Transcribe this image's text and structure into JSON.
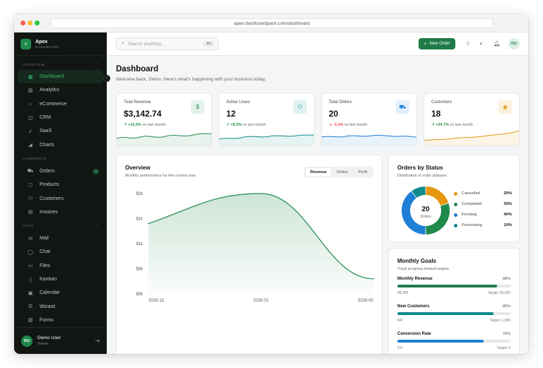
{
  "browser": {
    "url": "apex.dashboardpack.com/dashboard"
  },
  "brand": {
    "name": "Apex",
    "subtitle": "DASHBOARD"
  },
  "sidebar": {
    "sections": [
      {
        "title": "OVERVIEW",
        "items": [
          {
            "label": "Dashboard",
            "icon": "dashboard-icon",
            "active": true
          },
          {
            "label": "Analytics",
            "icon": "analytics-icon"
          },
          {
            "label": "eCommerce",
            "icon": "store-icon"
          },
          {
            "label": "CRM",
            "icon": "crm-icon"
          },
          {
            "label": "SaaS",
            "icon": "rocket-icon"
          },
          {
            "label": "Charts",
            "icon": "chart-icon"
          }
        ]
      },
      {
        "title": "COMMERCE",
        "items": [
          {
            "label": "Orders",
            "icon": "cart-icon",
            "badge": "12"
          },
          {
            "label": "Products",
            "icon": "box-icon"
          },
          {
            "label": "Customers",
            "icon": "users-icon"
          },
          {
            "label": "Invoices",
            "icon": "file-icon"
          }
        ]
      },
      {
        "title": "APPS",
        "items": [
          {
            "label": "Mail",
            "icon": "mail-icon"
          },
          {
            "label": "Chat",
            "icon": "chat-icon"
          },
          {
            "label": "Files",
            "icon": "folder-icon"
          },
          {
            "label": "Kanban",
            "icon": "kanban-icon"
          },
          {
            "label": "Calendar",
            "icon": "calendar-icon"
          },
          {
            "label": "Wizard",
            "icon": "list-icon"
          },
          {
            "label": "Forms",
            "icon": "form-icon"
          }
        ]
      }
    ],
    "user": {
      "initials": "DU",
      "name": "Demo User",
      "role": "Viewer"
    }
  },
  "topbar": {
    "search_placeholder": "Search anything...",
    "search_shortcut": "⌘K",
    "new_order_label": "New Order",
    "avatar_initials": "DU"
  },
  "page": {
    "title": "Dashboard",
    "subtitle": "Welcome back, Demo. Here's what's happening with your business today."
  },
  "stats": [
    {
      "label": "Total Revenue",
      "value": "$3,142.74",
      "change": "+12.5%",
      "direction": "up",
      "suffix": "vs last month",
      "icon": "dollar-icon",
      "color": "#1f8a4c",
      "bg": "#e3f3ea"
    },
    {
      "label": "Active Users",
      "value": "12",
      "change": "+8.2%",
      "direction": "up",
      "suffix": "vs last month",
      "icon": "users-icon",
      "color": "#0e8a8a",
      "bg": "#e0f2f2"
    },
    {
      "label": "Total Orders",
      "value": "20",
      "change": "-3.1%",
      "direction": "down",
      "suffix": "vs last month",
      "icon": "cart-icon",
      "color": "#1f7fd6",
      "bg": "#e3effb"
    },
    {
      "label": "Customers",
      "value": "18",
      "change": "+24.7%",
      "direction": "up",
      "suffix": "vs last month",
      "icon": "eye-icon",
      "color": "#e39a12",
      "bg": "#fcf1de"
    }
  ],
  "overview": {
    "title": "Overview",
    "subtitle": "Monthly performance for the current year",
    "tabs": [
      "Revenue",
      "Orders",
      "Profit"
    ],
    "active_tab": "Revenue"
  },
  "orders_status": {
    "title": "Orders by Status",
    "subtitle": "Distribution of order statuses",
    "center_value": "20",
    "center_label": "Orders",
    "segments": [
      {
        "label": "Cancelled",
        "pct": "20%",
        "value": 20,
        "color": "#e6960f"
      },
      {
        "label": "Completed",
        "pct": "30%",
        "value": 30,
        "color": "#1f8a4c"
      },
      {
        "label": "Pending",
        "pct": "40%",
        "value": 40,
        "color": "#1f7fd6"
      },
      {
        "label": "Processing",
        "pct": "10%",
        "value": 10,
        "color": "#0e8a8a"
      }
    ]
  },
  "goals": {
    "title": "Monthly Goals",
    "subtitle": "Track progress toward targets",
    "items": [
      {
        "label": "Monthly Revenue",
        "pct": "88%",
        "value": 88,
        "current": "48,295",
        "target": "Target: 55,000",
        "color": "#1f7a47"
      },
      {
        "label": "New Customers",
        "pct": "85%",
        "value": 85,
        "current": "847",
        "target": "Target: 1,000",
        "color": "#0e8a8a"
      },
      {
        "label": "Conversion Rate",
        "pct": "76%",
        "value": 76,
        "current": "3.8",
        "target": "Target: 5",
        "color": "#1f7fd6"
      }
    ]
  },
  "chart_data": {
    "type": "area",
    "x": [
      "2025-12",
      "2026-01",
      "2026-02"
    ],
    "series": [
      {
        "values": [
          1400,
          2000,
          300
        ]
      }
    ],
    "ytick_labels": [
      "$2k",
      "$1k",
      "$1k",
      "$0k",
      "$0k"
    ],
    "ylim": [
      0,
      2000
    ],
    "grid": false,
    "color": "#1f8a4c"
  }
}
